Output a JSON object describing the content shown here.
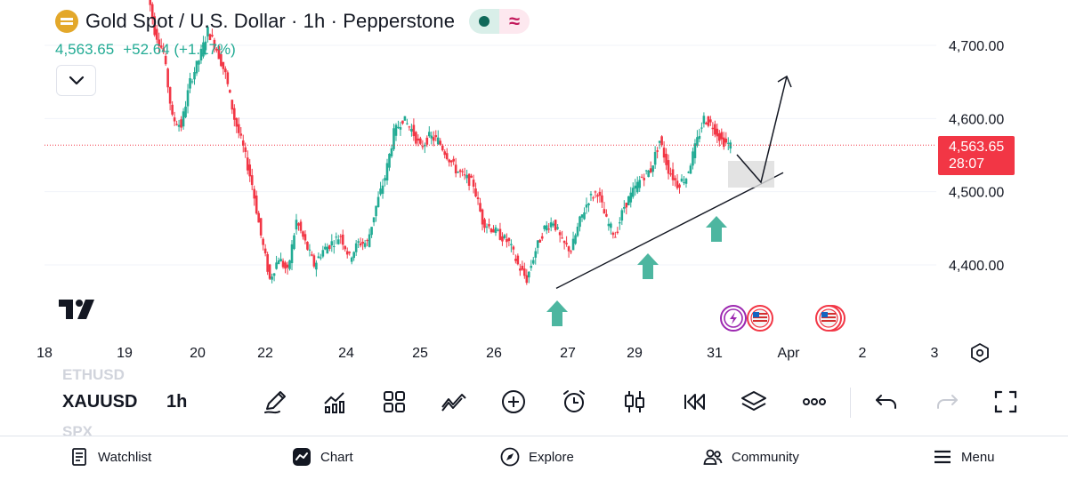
{
  "header": {
    "title": "Gold Spot / U.S. Dollar · 1h · Pepperstone",
    "last_price": "4,563.65",
    "change": "+52.64 (+1.17%)",
    "market_status_icon": "dot-icon",
    "delay_icon": "wave-icon"
  },
  "price_axis": {
    "labels": [
      "4,700.00",
      "4,600.00",
      "4,500.00",
      "4,400.00"
    ],
    "badge_price": "4,563.65",
    "badge_countdown": "28:07"
  },
  "time_axis": {
    "labels": [
      "18",
      "19",
      "20",
      "22",
      "24",
      "25",
      "26",
      "27",
      "29",
      "31",
      "Apr",
      "2",
      "3"
    ]
  },
  "toolbar": {
    "ghost_prev_symbol": "ETHUSD",
    "symbol": "XAUUSD",
    "timeframe": "1h",
    "ghost_next_symbol": "SPX",
    "tools": [
      "pen-icon",
      "indicators-icon",
      "grid-icon",
      "compare-icon",
      "plus-circle-icon",
      "alarm-icon",
      "candles-icon",
      "replay-icon",
      "layers-icon",
      "more-icon",
      "undo-icon",
      "redo-icon",
      "fullscreen-icon"
    ]
  },
  "nav": {
    "watchlist": "Watchlist",
    "chart": "Chart",
    "explore": "Explore",
    "community": "Community",
    "menu": "Menu"
  },
  "colors": {
    "up": "#22ab94",
    "down": "#f23645",
    "arrow_marker": "#4db6a0"
  },
  "chart_data": {
    "type": "candlestick",
    "symbol": "XAUUSD",
    "interval": "1h",
    "y_range": [
      4366,
      4790
    ],
    "last_close": 4563.65,
    "trendline": {
      "from": {
        "x": "27",
        "y": 4368
      },
      "to": {
        "x": "1 Apr",
        "y": 4526
      }
    },
    "projection_path": [
      4563,
      4512,
      4680
    ],
    "arrow_markers_at": [
      "27",
      "29",
      "31"
    ],
    "close_path": [
      4790,
      4720,
      4690,
      4600,
      4590,
      4650,
      4680,
      4720,
      4695,
      4660,
      4600,
      4560,
      4510,
      4440,
      4380,
      4410,
      4390,
      4460,
      4430,
      4400,
      4420,
      4430,
      4440,
      4410,
      4430,
      4430,
      4480,
      4520,
      4580,
      4600,
      4585,
      4560,
      4575,
      4570,
      4550,
      4530,
      4520,
      4510,
      4460,
      4450,
      4440,
      4430,
      4400,
      4380,
      4420,
      4450,
      4460,
      4430,
      4420,
      4460,
      4490,
      4500,
      4460,
      4440,
      4480,
      4500,
      4520,
      4530,
      4570,
      4530,
      4510,
      4520,
      4560,
      4600,
      4590,
      4570,
      4563
    ]
  }
}
